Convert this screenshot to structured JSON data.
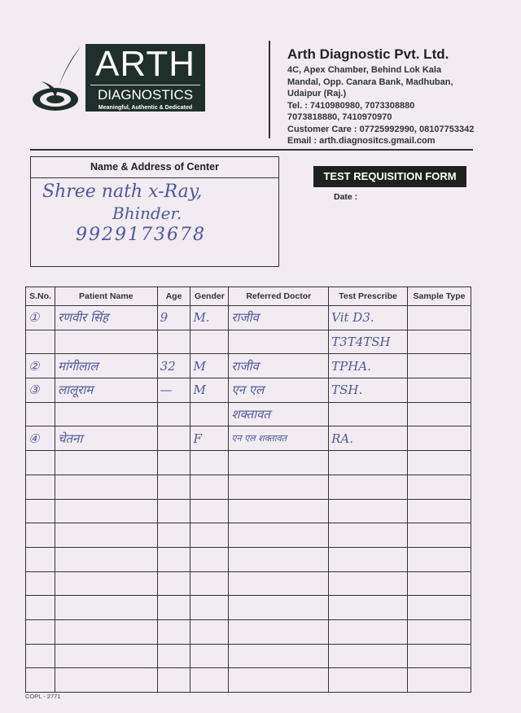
{
  "logo": {
    "title": "ARTH",
    "subtitle": "DIAGNOSTICS",
    "tagline": "Meaningful, Authentic & Dedicated"
  },
  "company": {
    "name": "Arth Diagnostic Pvt. Ltd.",
    "address_lines": [
      "4C, Apex Chamber, Behind Lok Kala",
      "Mandal, Opp. Canara Bank, Madhuban,",
      "Udaipur (Raj.)"
    ],
    "tel": "Tel. : 7410980980, 7073308880",
    "tel2": "7073818880, 7410970970",
    "care": "Customer Care : 07725992990, 08107753342",
    "email": "Email : arth.diagnositcs.gmail.com"
  },
  "center": {
    "label": "Name & Address of Center",
    "lines": [
      "Shree nath x-Ray,",
      "Bhinder.",
      "9929173678"
    ]
  },
  "form": {
    "title": "TEST REQUISITION FORM",
    "date_label": "Date :"
  },
  "table": {
    "headers": [
      "S.No.",
      "Patient Name",
      "Age",
      "Gender",
      "Referred Doctor",
      "Test Prescribe",
      "Sample Type"
    ],
    "rows": [
      [
        "①",
        "रणवीर सिंह",
        "9",
        "M.",
        "राजीव",
        "Vit D3.",
        ""
      ],
      [
        "",
        "",
        "",
        "",
        "",
        "T3T4TSH",
        ""
      ],
      [
        "②",
        "मांगीलाल",
        "32",
        "M",
        "राजीव",
        "TPHA.",
        ""
      ],
      [
        "③",
        "लालूराम",
        "—",
        "M",
        "एन एल",
        "TSH.",
        ""
      ],
      [
        "",
        "",
        "",
        "",
        "शक्तावत",
        "",
        ""
      ],
      [
        "④",
        "चेतना",
        "",
        "F",
        "एन एल शक्तावत",
        "RA.",
        ""
      ],
      [
        "",
        "",
        "",
        "",
        "",
        "",
        ""
      ],
      [
        "",
        "",
        "",
        "",
        "",
        "",
        ""
      ],
      [
        "",
        "",
        "",
        "",
        "",
        "",
        ""
      ],
      [
        "",
        "",
        "",
        "",
        "",
        "",
        ""
      ],
      [
        "",
        "",
        "",
        "",
        "",
        "",
        ""
      ],
      [
        "",
        "",
        "",
        "",
        "",
        "",
        ""
      ],
      [
        "",
        "",
        "",
        "",
        "",
        "",
        ""
      ],
      [
        "",
        "",
        "",
        "",
        "",
        "",
        ""
      ],
      [
        "",
        "",
        "",
        "",
        "",
        "",
        ""
      ],
      [
        "",
        "",
        "",
        "",
        "",
        "",
        ""
      ]
    ]
  },
  "footer": {
    "code": "COPL - 2771"
  }
}
